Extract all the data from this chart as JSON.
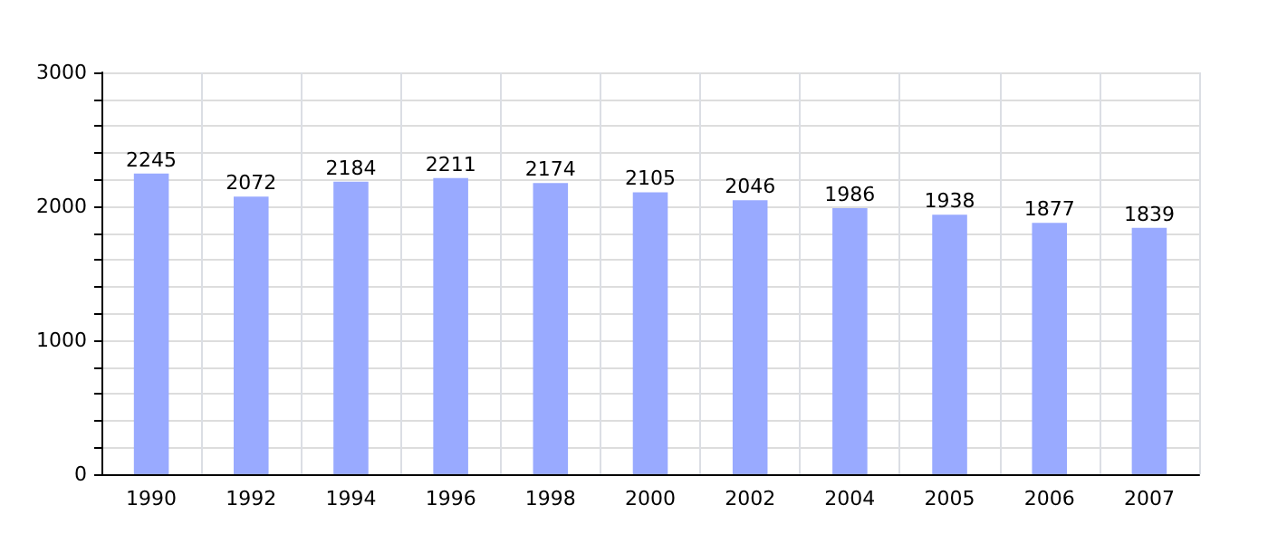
{
  "chart_data": {
    "type": "bar",
    "categories": [
      "1990",
      "1992",
      "1994",
      "1996",
      "1998",
      "2000",
      "2002",
      "2004",
      "2005",
      "2006",
      "2007"
    ],
    "values": [
      2245,
      2072,
      2184,
      2211,
      2174,
      2105,
      2046,
      1986,
      1938,
      1877,
      1839
    ],
    "color": "#99aaff",
    "data_labels": true,
    "ylim": [
      0,
      3000
    ],
    "yticks": [
      0,
      {
        "value": 200,
        "label": null
      },
      {
        "value": 400,
        "label": null
      },
      {
        "value": 600,
        "label": null
      },
      {
        "value": 800,
        "label": null
      },
      1000,
      {
        "value": 1200,
        "label": null
      },
      {
        "value": 1400,
        "label": null
      },
      {
        "value": 1600,
        "label": null
      },
      {
        "value": 1800,
        "label": null
      },
      2000,
      {
        "value": 2200,
        "label": null
      },
      {
        "value": 2400,
        "label": null
      },
      {
        "value": 2600,
        "label": null
      },
      {
        "value": 2800,
        "label": null
      },
      3000
    ],
    "grid": true
  }
}
